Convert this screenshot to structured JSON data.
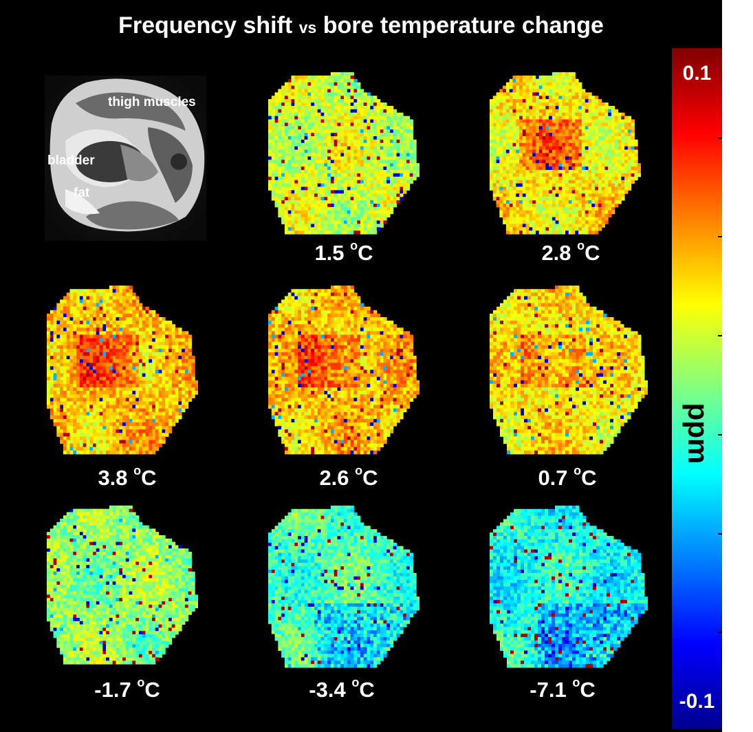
{
  "figure": {
    "title_main": "Frequency shift",
    "title_vs": "vs",
    "title_rest": "bore temperature change"
  },
  "anatomy": {
    "labels": [
      "thigh muscles",
      "bladder",
      "fat"
    ]
  },
  "panels": [
    {
      "temperature": "1.5",
      "unit": "C",
      "degree": "o",
      "pattern": "mild_warm"
    },
    {
      "temperature": "2.8",
      "unit": "C",
      "degree": "o",
      "pattern": "warm"
    },
    {
      "temperature": "3.8",
      "unit": "C",
      "degree": "o",
      "pattern": "warmest"
    },
    {
      "temperature": "2.6",
      "unit": "C",
      "degree": "o",
      "pattern": "warmest"
    },
    {
      "temperature": "0.7",
      "unit": "C",
      "degree": "o",
      "pattern": "warm"
    },
    {
      "temperature": "-1.7",
      "unit": "C",
      "degree": "o",
      "pattern": "mixed"
    },
    {
      "temperature": "-3.4",
      "unit": "C",
      "degree": "o",
      "pattern": "cool"
    },
    {
      "temperature": "-7.1",
      "unit": "C",
      "degree": "o",
      "pattern": "coolest"
    }
  ],
  "colorbar": {
    "max_label": "0.1",
    "min_label": "-0.1",
    "unit": "ppm",
    "colormap": "jet",
    "range": [
      -0.1,
      0.1
    ]
  }
}
